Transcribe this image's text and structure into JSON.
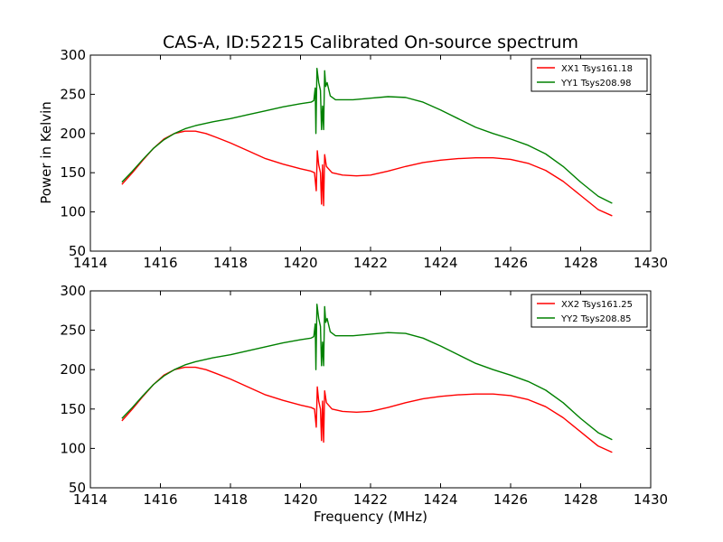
{
  "figure": {
    "title": "CAS-A, ID:52215 Calibrated On-source spectrum",
    "xlabel": "Frequency (MHz)",
    "ylabel": "Power in Kelvin"
  },
  "colors": {
    "red": "#ff0000",
    "green": "#008000"
  },
  "chart_data": [
    {
      "type": "line",
      "title": "CAS-A, ID:52215 Calibrated On-source spectrum",
      "xlabel": "",
      "ylabel": "Power in Kelvin",
      "xlim": [
        1414,
        1430
      ],
      "ylim": [
        50,
        300
      ],
      "xticks": [
        1414,
        1416,
        1418,
        1420,
        1422,
        1424,
        1426,
        1428,
        1430
      ],
      "yticks": [
        50,
        100,
        150,
        200,
        250,
        300
      ],
      "grid": false,
      "legend_position": "top-right",
      "series": [
        {
          "name": "XX1 Tsys161.18",
          "color": "#ff0000",
          "points": [
            [
              1414.9,
              135
            ],
            [
              1415.2,
              150
            ],
            [
              1415.5,
              166
            ],
            [
              1415.8,
              181
            ],
            [
              1416.1,
              193
            ],
            [
              1416.4,
              200
            ],
            [
              1416.7,
              203
            ],
            [
              1417.0,
              203
            ],
            [
              1417.3,
              200
            ],
            [
              1417.6,
              195
            ],
            [
              1418.0,
              188
            ],
            [
              1418.5,
              178
            ],
            [
              1419.0,
              168
            ],
            [
              1419.5,
              161
            ],
            [
              1420.0,
              155
            ],
            [
              1420.3,
              152
            ],
            [
              1420.4,
              150
            ],
            [
              1420.45,
              127
            ],
            [
              1420.48,
              178
            ],
            [
              1420.52,
              160
            ],
            [
              1420.57,
              150
            ],
            [
              1420.6,
              110
            ],
            [
              1420.63,
              160
            ],
            [
              1420.66,
              108
            ],
            [
              1420.69,
              173
            ],
            [
              1420.74,
              158
            ],
            [
              1420.9,
              150
            ],
            [
              1421.2,
              147
            ],
            [
              1421.6,
              146
            ],
            [
              1422.0,
              147
            ],
            [
              1422.5,
              152
            ],
            [
              1423.0,
              158
            ],
            [
              1423.5,
              163
            ],
            [
              1424.0,
              166
            ],
            [
              1424.5,
              168
            ],
            [
              1425.0,
              169
            ],
            [
              1425.5,
              169
            ],
            [
              1426.0,
              167
            ],
            [
              1426.5,
              162
            ],
            [
              1427.0,
              153
            ],
            [
              1427.5,
              139
            ],
            [
              1428.0,
              121
            ],
            [
              1428.5,
              103
            ],
            [
              1428.9,
              95
            ]
          ]
        },
        {
          "name": "YY1 Tsys208.98",
          "color": "#008000",
          "points": [
            [
              1414.9,
              138
            ],
            [
              1415.2,
              152
            ],
            [
              1415.5,
              167
            ],
            [
              1415.8,
              181
            ],
            [
              1416.1,
              192
            ],
            [
              1416.4,
              200
            ],
            [
              1416.7,
              206
            ],
            [
              1417.0,
              210
            ],
            [
              1417.5,
              215
            ],
            [
              1418.0,
              219
            ],
            [
              1418.5,
              224
            ],
            [
              1419.0,
              229
            ],
            [
              1419.5,
              234
            ],
            [
              1420.0,
              238
            ],
            [
              1420.3,
              240
            ],
            [
              1420.38,
              242
            ],
            [
              1420.42,
              258
            ],
            [
              1420.44,
              200
            ],
            [
              1420.47,
              283
            ],
            [
              1420.52,
              265
            ],
            [
              1420.57,
              255
            ],
            [
              1420.6,
              205
            ],
            [
              1420.63,
              235
            ],
            [
              1420.66,
              205
            ],
            [
              1420.69,
              280
            ],
            [
              1420.72,
              260
            ],
            [
              1420.76,
              265
            ],
            [
              1420.85,
              248
            ],
            [
              1421.0,
              243
            ],
            [
              1421.5,
              243
            ],
            [
              1422.0,
              245
            ],
            [
              1422.5,
              247
            ],
            [
              1423.0,
              246
            ],
            [
              1423.5,
              240
            ],
            [
              1424.0,
              230
            ],
            [
              1424.5,
              219
            ],
            [
              1425.0,
              208
            ],
            [
              1425.5,
              200
            ],
            [
              1426.0,
              193
            ],
            [
              1426.5,
              185
            ],
            [
              1427.0,
              174
            ],
            [
              1427.5,
              158
            ],
            [
              1428.0,
              138
            ],
            [
              1428.5,
              120
            ],
            [
              1428.9,
              111
            ]
          ]
        }
      ]
    },
    {
      "type": "line",
      "title": "",
      "xlabel": "Frequency (MHz)",
      "ylabel": "",
      "xlim": [
        1414,
        1430
      ],
      "ylim": [
        50,
        300
      ],
      "xticks": [
        1414,
        1416,
        1418,
        1420,
        1422,
        1424,
        1426,
        1428,
        1430
      ],
      "yticks": [
        50,
        100,
        150,
        200,
        250,
        300
      ],
      "grid": false,
      "legend_position": "top-right",
      "series": [
        {
          "name": "XX2 Tsys161.25",
          "color": "#ff0000",
          "points": [
            [
              1414.9,
              135
            ],
            [
              1415.2,
              150
            ],
            [
              1415.5,
              166
            ],
            [
              1415.8,
              181
            ],
            [
              1416.1,
              193
            ],
            [
              1416.4,
              200
            ],
            [
              1416.7,
              203
            ],
            [
              1417.0,
              203
            ],
            [
              1417.3,
              200
            ],
            [
              1417.6,
              195
            ],
            [
              1418.0,
              188
            ],
            [
              1418.5,
              178
            ],
            [
              1419.0,
              168
            ],
            [
              1419.5,
              161
            ],
            [
              1420.0,
              155
            ],
            [
              1420.3,
              152
            ],
            [
              1420.4,
              150
            ],
            [
              1420.45,
              127
            ],
            [
              1420.48,
              178
            ],
            [
              1420.52,
              160
            ],
            [
              1420.57,
              150
            ],
            [
              1420.6,
              110
            ],
            [
              1420.63,
              160
            ],
            [
              1420.66,
              108
            ],
            [
              1420.69,
              173
            ],
            [
              1420.74,
              158
            ],
            [
              1420.9,
              150
            ],
            [
              1421.2,
              147
            ],
            [
              1421.6,
              146
            ],
            [
              1422.0,
              147
            ],
            [
              1422.5,
              152
            ],
            [
              1423.0,
              158
            ],
            [
              1423.5,
              163
            ],
            [
              1424.0,
              166
            ],
            [
              1424.5,
              168
            ],
            [
              1425.0,
              169
            ],
            [
              1425.5,
              169
            ],
            [
              1426.0,
              167
            ],
            [
              1426.5,
              162
            ],
            [
              1427.0,
              153
            ],
            [
              1427.5,
              139
            ],
            [
              1428.0,
              121
            ],
            [
              1428.5,
              103
            ],
            [
              1428.9,
              95
            ]
          ]
        },
        {
          "name": "YY2 Tsys208.85",
          "color": "#008000",
          "points": [
            [
              1414.9,
              138
            ],
            [
              1415.2,
              152
            ],
            [
              1415.5,
              167
            ],
            [
              1415.8,
              181
            ],
            [
              1416.1,
              192
            ],
            [
              1416.4,
              200
            ],
            [
              1416.7,
              206
            ],
            [
              1417.0,
              210
            ],
            [
              1417.5,
              215
            ],
            [
              1418.0,
              219
            ],
            [
              1418.5,
              224
            ],
            [
              1419.0,
              229
            ],
            [
              1419.5,
              234
            ],
            [
              1420.0,
              238
            ],
            [
              1420.3,
              240
            ],
            [
              1420.38,
              242
            ],
            [
              1420.42,
              258
            ],
            [
              1420.44,
              200
            ],
            [
              1420.47,
              283
            ],
            [
              1420.52,
              265
            ],
            [
              1420.57,
              255
            ],
            [
              1420.6,
              205
            ],
            [
              1420.63,
              235
            ],
            [
              1420.66,
              205
            ],
            [
              1420.69,
              280
            ],
            [
              1420.72,
              260
            ],
            [
              1420.76,
              265
            ],
            [
              1420.85,
              248
            ],
            [
              1421.0,
              243
            ],
            [
              1421.5,
              243
            ],
            [
              1422.0,
              245
            ],
            [
              1422.5,
              247
            ],
            [
              1423.0,
              246
            ],
            [
              1423.5,
              240
            ],
            [
              1424.0,
              230
            ],
            [
              1424.5,
              219
            ],
            [
              1425.0,
              208
            ],
            [
              1425.5,
              200
            ],
            [
              1426.0,
              193
            ],
            [
              1426.5,
              185
            ],
            [
              1427.0,
              174
            ],
            [
              1427.5,
              158
            ],
            [
              1428.0,
              138
            ],
            [
              1428.5,
              120
            ],
            [
              1428.9,
              111
            ]
          ]
        }
      ]
    }
  ]
}
